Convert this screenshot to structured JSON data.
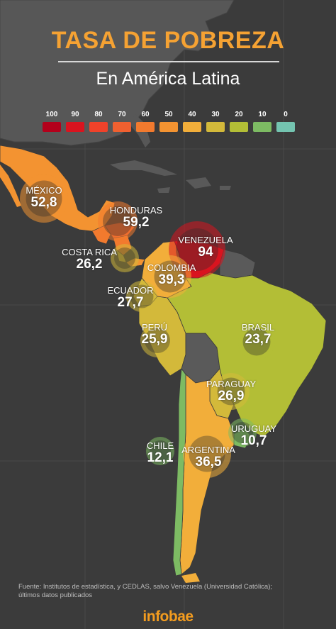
{
  "title": "TASA DE POBREZA",
  "subtitle": "En América Latina",
  "legend": [
    {
      "label": "100",
      "color": "#b3001b"
    },
    {
      "label": "90",
      "color": "#d9141f"
    },
    {
      "label": "80",
      "color": "#f0422a"
    },
    {
      "label": "70",
      "color": "#f06030"
    },
    {
      "label": "60",
      "color": "#f27a2e"
    },
    {
      "label": "50",
      "color": "#f39331"
    },
    {
      "label": "40",
      "color": "#f2ae3a"
    },
    {
      "label": "30",
      "color": "#d3b93a"
    },
    {
      "label": "20",
      "color": "#b3be36"
    },
    {
      "label": "10",
      "color": "#7dbb63"
    },
    {
      "label": "0",
      "color": "#74c4b0"
    }
  ],
  "countries": [
    {
      "name": "MÉXICO",
      "value": "52,8",
      "poverty_rate": 52.8,
      "color": "#f39331"
    },
    {
      "name": "HONDURAS",
      "value": "59,2",
      "poverty_rate": 59.2,
      "color": "#f27a2e"
    },
    {
      "name": "VENEZUELA",
      "value": "94",
      "poverty_rate": 94,
      "color": "#d9141f"
    },
    {
      "name": "COSTA RICA",
      "value": "26,2",
      "poverty_rate": 26.2,
      "color": "#d3b93a"
    },
    {
      "name": "COLOMBIA",
      "value": "39,3",
      "poverty_rate": 39.3,
      "color": "#f2ae3a"
    },
    {
      "name": "ECUADOR",
      "value": "27,7",
      "poverty_rate": 27.7,
      "color": "#d3b93a"
    },
    {
      "name": "PERÚ",
      "value": "25,9",
      "poverty_rate": 25.9,
      "color": "#d3b93a"
    },
    {
      "name": "BRASIL",
      "value": "23,7",
      "poverty_rate": 23.7,
      "color": "#b3be36"
    },
    {
      "name": "PARAGUAY",
      "value": "26,9",
      "poverty_rate": 26.9,
      "color": "#d3b93a"
    },
    {
      "name": "URUGUAY",
      "value": "10,7",
      "poverty_rate": 10.7,
      "color": "#7dbb63"
    },
    {
      "name": "CHILE",
      "value": "12,1",
      "poverty_rate": 12.1,
      "color": "#7dbb63"
    },
    {
      "name": "ARGENTINA",
      "value": "36,5",
      "poverty_rate": 36.5,
      "color": "#f2ae3a"
    }
  ],
  "footer": {
    "line1": "Fuente: Institutos de estadística, y CEDLAS, salvo Venezuela (Universidad Católica);",
    "line2": "últimos datos publicados"
  },
  "brand": "infobae"
}
